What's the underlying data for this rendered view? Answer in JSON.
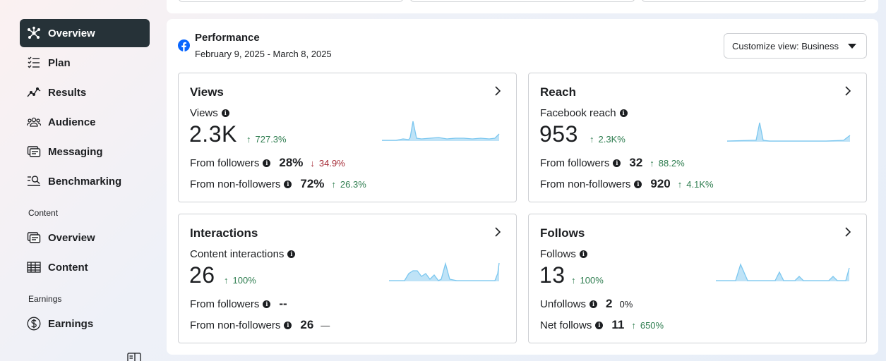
{
  "sidebar": {
    "items": [
      {
        "label": "Overview",
        "icon": "overview-icon",
        "active": true
      },
      {
        "label": "Plan",
        "icon": "plan-list-icon"
      },
      {
        "label": "Results",
        "icon": "results-chart-icon"
      },
      {
        "label": "Audience",
        "icon": "audience-icon"
      },
      {
        "label": "Messaging",
        "icon": "messaging-icon"
      },
      {
        "label": "Benchmarking",
        "icon": "benchmarking-icon"
      }
    ],
    "content_section": "Content",
    "content_items": [
      {
        "label": "Overview",
        "icon": "content-overview-icon"
      },
      {
        "label": "Content",
        "icon": "table-icon"
      }
    ],
    "earnings_section": "Earnings",
    "earnings_items": [
      {
        "label": "Earnings",
        "icon": "dollar-icon"
      }
    ]
  },
  "performance": {
    "title": "Performance",
    "date_range": "February 9, 2025 - March 8, 2025",
    "customize_label": "Customize view: Business"
  },
  "cards": {
    "views": {
      "title": "Views",
      "metric_label": "Views",
      "value": "2.3K",
      "delta": "727.3%",
      "rows": [
        {
          "label": "From followers",
          "value": "28%",
          "delta": "34.9%",
          "direction": "down"
        },
        {
          "label": "From non-followers",
          "value": "72%",
          "delta": "26.3%",
          "direction": "up"
        }
      ]
    },
    "reach": {
      "title": "Reach",
      "metric_label": "Facebook reach",
      "value": "953",
      "delta": "2.3K%",
      "rows": [
        {
          "label": "From followers",
          "value": "32",
          "delta": "88.2%",
          "direction": "up"
        },
        {
          "label": "From non-followers",
          "value": "920",
          "delta": "4.1K%",
          "direction": "up"
        }
      ]
    },
    "interactions": {
      "title": "Interactions",
      "metric_label": "Content interactions",
      "value": "26",
      "delta": "100%",
      "rows": [
        {
          "label": "From followers",
          "value": "--",
          "delta": ""
        },
        {
          "label": "From non-followers",
          "value": "26",
          "delta": "—"
        }
      ]
    },
    "follows": {
      "title": "Follows",
      "metric_label": "Follows",
      "value": "13",
      "delta": "100%",
      "rows": [
        {
          "label": "Unfollows",
          "value": "2",
          "delta": "0%",
          "direction": "none"
        },
        {
          "label": "Net follows",
          "value": "11",
          "delta": "650%",
          "direction": "up"
        }
      ]
    }
  },
  "colors": {
    "accent_dark": "#263238",
    "positive": "#2e7d4f",
    "negative": "#a52a35",
    "spark_fill": "#bfe3f7",
    "spark_line": "#7cc7ef",
    "facebook_blue": "#0866ff"
  }
}
